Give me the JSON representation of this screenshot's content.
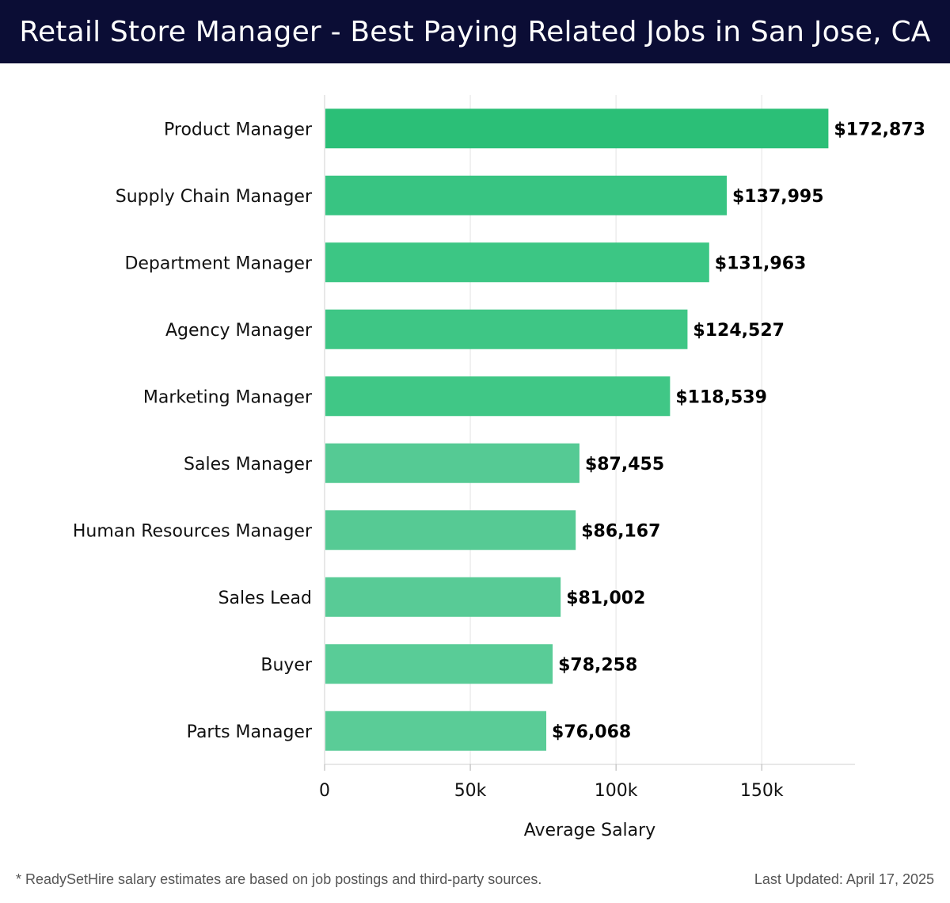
{
  "header": {
    "title": "Retail Store Manager - Best Paying Related Jobs in San Jose, CA"
  },
  "chart_data": {
    "type": "bar",
    "orientation": "horizontal",
    "categories": [
      "Product Manager",
      "Supply Chain Manager",
      "Department Manager",
      "Agency Manager",
      "Marketing Manager",
      "Sales Manager",
      "Human Resources Manager",
      "Sales Lead",
      "Buyer",
      "Parts Manager"
    ],
    "values": [
      172873,
      137995,
      131963,
      124527,
      118539,
      87455,
      86167,
      81002,
      78258,
      76068
    ],
    "value_labels": [
      "$172,873",
      "$137,995",
      "$131,963",
      "$124,527",
      "$118,539",
      "$87,455",
      "$86,167",
      "$81,002",
      "$78,258",
      "$76,068"
    ],
    "bar_colors": [
      "#2bbf77",
      "#38c482",
      "#3cc684",
      "#3ec685",
      "#40c786",
      "#55ca94",
      "#56ca94",
      "#58cb96",
      "#59cc97",
      "#5acc97"
    ],
    "xlabel": "Average Salary",
    "ylabel": "",
    "xlim": [
      0,
      182000
    ],
    "xticks": [
      0,
      50000,
      100000,
      150000
    ],
    "xtick_labels": [
      "0",
      "50k",
      "100k",
      "150k"
    ],
    "grid": "vertical"
  },
  "footer": {
    "note": "* ReadySetHire salary estimates are based on job postings and third-party sources.",
    "updated": "Last Updated: April 17, 2025"
  }
}
